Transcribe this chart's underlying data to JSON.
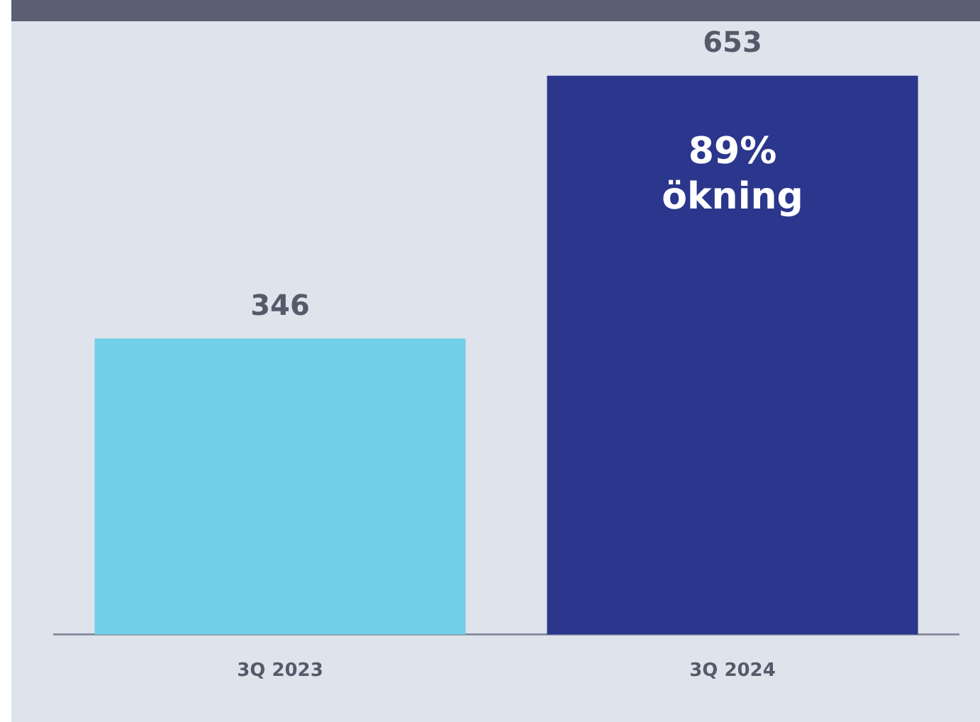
{
  "chart_data": {
    "type": "bar",
    "categories": [
      "3Q 2023",
      "3Q 2024"
    ],
    "values": [
      346,
      653
    ],
    "colors": [
      "#72cfe8",
      "#2a378c"
    ],
    "data_labels": true,
    "grid": false,
    "legend": false,
    "annotations": [
      "89% ökning"
    ]
  }
}
